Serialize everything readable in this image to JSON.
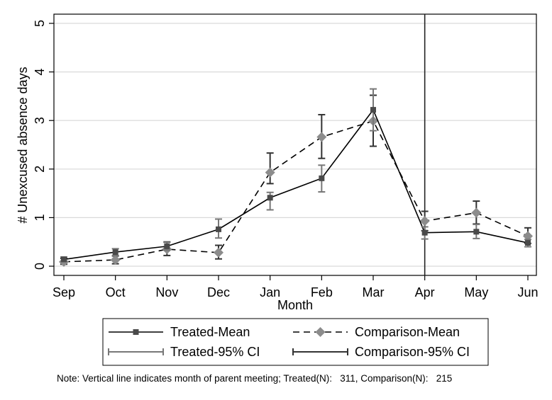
{
  "chart_data": {
    "type": "line",
    "title": "",
    "xlabel": "Month",
    "ylabel": "# Unexcused absence days",
    "categories": [
      "Sep",
      "Oct",
      "Nov",
      "Dec",
      "Jan",
      "Feb",
      "Mar",
      "Apr",
      "May",
      "Jun"
    ],
    "ylim": [
      0,
      5
    ],
    "yticks": [
      0,
      1,
      2,
      3,
      4,
      5
    ],
    "grid": true,
    "vertical_line": {
      "category": "Apr"
    },
    "series": [
      {
        "name": "Treated-Mean",
        "color": "#000000",
        "marker_color": "#4a4a4a",
        "line_style": "solid",
        "marker": "square",
        "values": [
          0.14,
          0.29,
          0.41,
          0.76,
          1.41,
          1.81,
          3.22,
          0.69,
          0.71,
          0.48
        ],
        "ci_name": "Treated-95% CI",
        "ci_color": "#777777",
        "ci_low": [
          0.1,
          0.22,
          0.33,
          0.58,
          1.16,
          1.53,
          2.79,
          0.56,
          0.57,
          0.4
        ],
        "ci_high": [
          0.19,
          0.36,
          0.49,
          0.97,
          1.52,
          2.08,
          3.65,
          0.81,
          0.86,
          0.55
        ]
      },
      {
        "name": "Comparison-Mean",
        "color": "#000000",
        "marker_color": "#8c8c8c",
        "line_style": "dashed",
        "marker": "diamond",
        "values": [
          0.09,
          0.13,
          0.35,
          0.28,
          1.93,
          2.66,
          2.99,
          0.93,
          1.1,
          0.62
        ],
        "ci_name": "Comparison-95% CI",
        "ci_color": "#333333",
        "ci_low": [
          0.04,
          0.05,
          0.22,
          0.15,
          1.7,
          2.22,
          2.47,
          0.73,
          0.87,
          0.47
        ],
        "ci_high": [
          0.16,
          0.21,
          0.5,
          0.43,
          2.33,
          3.12,
          3.52,
          1.13,
          1.34,
          0.79
        ]
      }
    ],
    "legend": {
      "placement": "bottom",
      "entries": [
        "Treated-Mean",
        "Comparison-Mean",
        "Treated-95% CI",
        "Comparison-95% CI"
      ]
    },
    "note": "Note: Vertical line indicates month of parent meeting; Treated(N):   311, Comparison(N):   215"
  }
}
